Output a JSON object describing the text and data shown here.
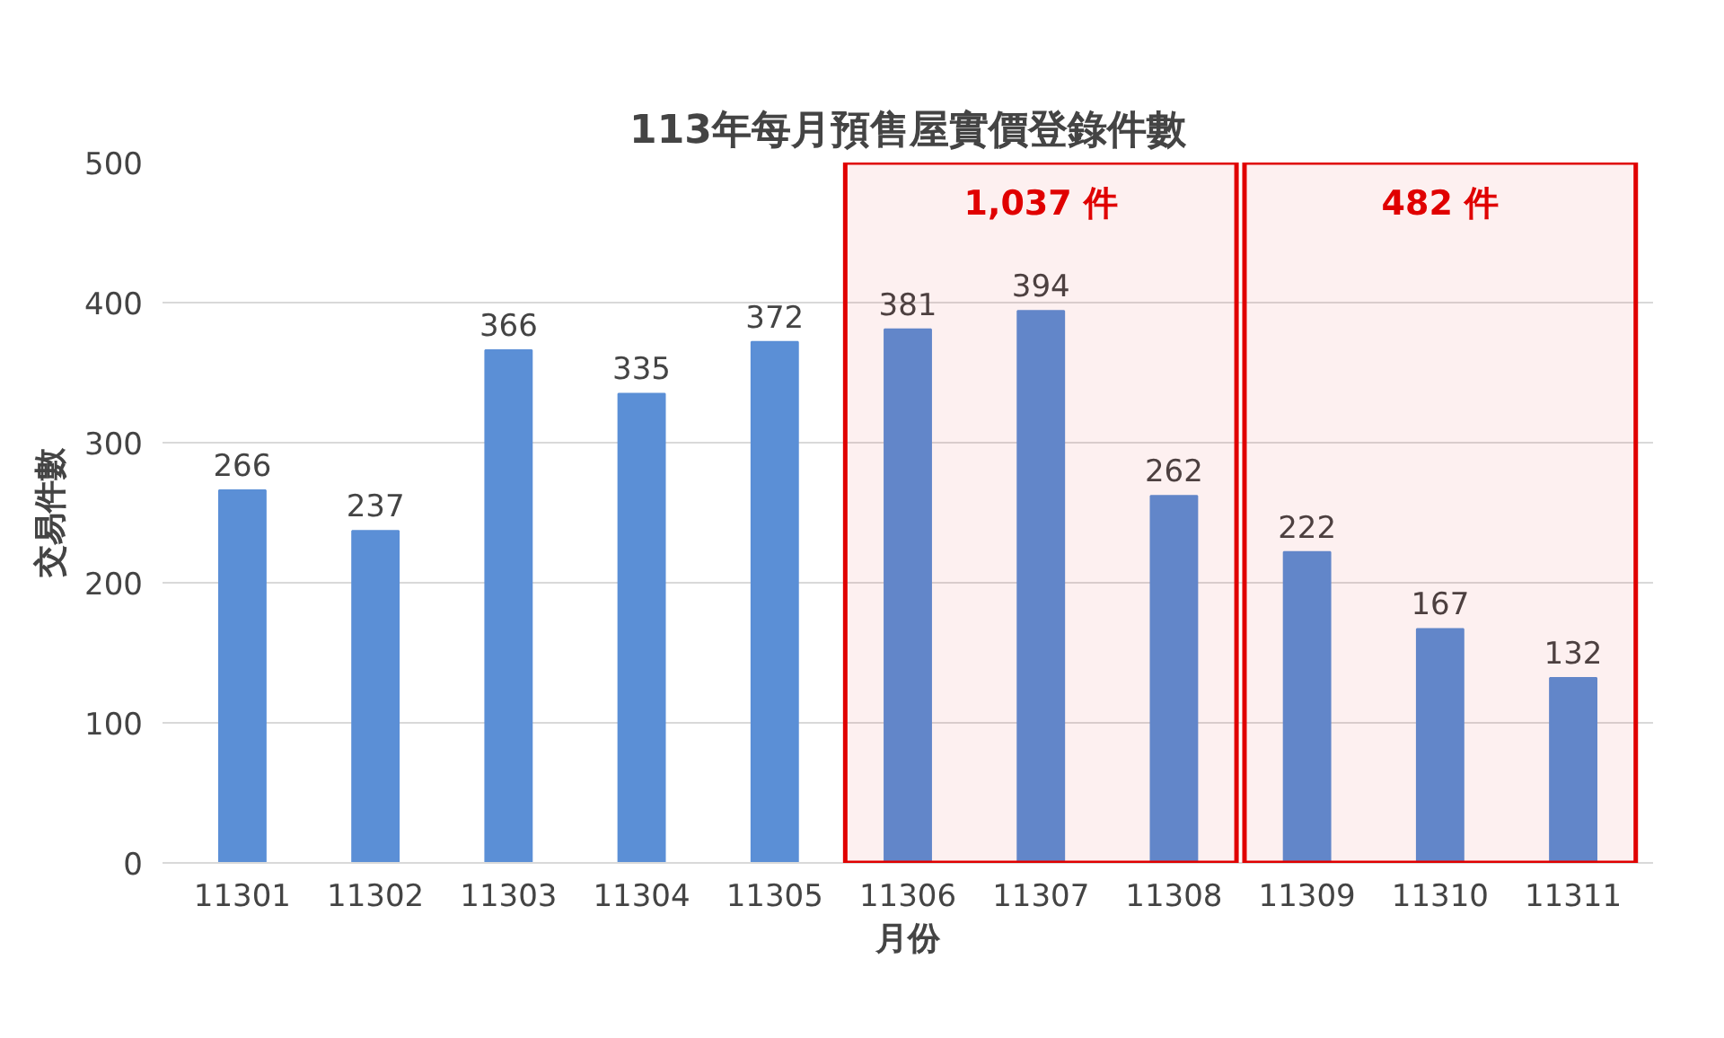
{
  "chart_data": {
    "type": "bar",
    "title": "113年每月預售屋實價登錄件數",
    "xlabel": "月份",
    "ylabel": "交易件數",
    "categories": [
      "11301",
      "11302",
      "11303",
      "11304",
      "11305",
      "11306",
      "11307",
      "11308",
      "11309",
      "11310",
      "11311"
    ],
    "values": [
      266,
      237,
      366,
      335,
      372,
      381,
      394,
      262,
      222,
      167,
      132
    ],
    "color": "#5b8fd6",
    "ylim": [
      0,
      500
    ],
    "yticks": [
      0,
      100,
      200,
      300,
      400,
      500
    ],
    "grid": "y",
    "data_labels": true,
    "bands": [
      {
        "axis": "x",
        "from": "11306",
        "to": "11308",
        "label": "1,037 件",
        "color": "#e00000"
      },
      {
        "axis": "x",
        "from": "11309",
        "to": "11311",
        "label": "482 件",
        "color": "#e00000"
      }
    ]
  }
}
